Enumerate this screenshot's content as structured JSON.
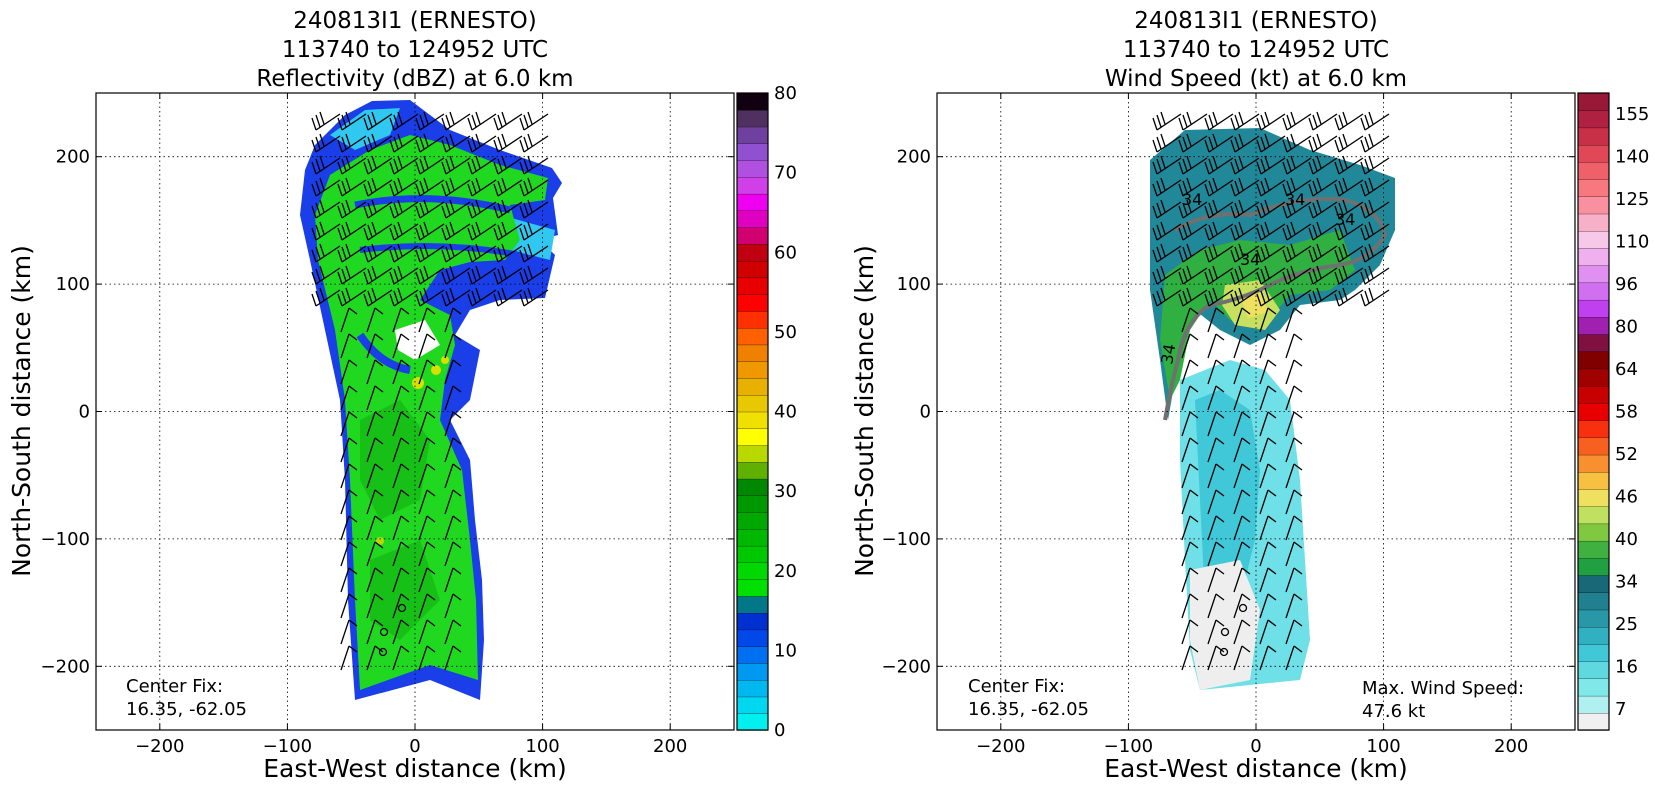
{
  "chart_data": [
    {
      "type": "heatmap",
      "title_lines": [
        "240813I1 (ERNESTO)",
        "113740 to 124952 UTC",
        "Reflectivity (dBZ) at 6.0 km"
      ],
      "xlabel": "East-West distance (km)",
      "ylabel": "North-South distance (km)",
      "xlim": [
        -250,
        250
      ],
      "ylim": [
        -250,
        250
      ],
      "xticks": [
        -200,
        -100,
        0,
        100,
        200
      ],
      "yticks": [
        -200,
        -100,
        0,
        100,
        200
      ],
      "grid": true,
      "annotation_lines": [
        "Center Fix:",
        "16.35, -62.05"
      ],
      "colorbar": {
        "min": 0,
        "max": 80,
        "tick_labels": [
          "0",
          "10",
          "20",
          "30",
          "40",
          "50",
          "60",
          "70",
          "80"
        ],
        "colors": [
          "#00f0f0",
          "#00d8f0",
          "#00b8f0",
          "#0098f0",
          "#0070f0",
          "#0048e8",
          "#0030d0",
          "#007888",
          "#00e000",
          "#00d800",
          "#00c800",
          "#00b800",
          "#00a800",
          "#009800",
          "#008800",
          "#60b000",
          "#b8d800",
          "#ffff00",
          "#f0e000",
          "#e8c800",
          "#e8b000",
          "#f09800",
          "#f08000",
          "#ff6000",
          "#ff3000",
          "#ff0000",
          "#e80000",
          "#d00000",
          "#c00010",
          "#d00070",
          "#e000c0",
          "#f000f0",
          "#d040e8",
          "#b050e0",
          "#9050d0",
          "#7040a0",
          "#503060",
          "#100010"
        ]
      }
    },
    {
      "type": "heatmap",
      "title_lines": [
        "240813I1 (ERNESTO)",
        "113740 to 124952 UTC",
        "Wind Speed (kt) at 6.0 km"
      ],
      "xlabel": "East-West distance (km)",
      "ylabel": "North-South distance (km)",
      "xlim": [
        -250,
        250
      ],
      "ylim": [
        -250,
        250
      ],
      "xticks": [
        -200,
        -100,
        0,
        100,
        200
      ],
      "yticks": [
        -200,
        -100,
        0,
        100,
        200
      ],
      "grid": true,
      "annotation_lines": [
        "Center Fix:",
        "16.35, -62.05"
      ],
      "max_wind_lines": [
        "Max. Wind Speed:",
        "47.6 kt"
      ],
      "contour_labels": [
        "34",
        "34",
        "34",
        "34",
        "34"
      ],
      "colorbar": {
        "tick_labels": [
          "7",
          "16",
          "25",
          "34",
          "40",
          "46",
          "52",
          "58",
          "64",
          "80",
          "96",
          "110",
          "125",
          "140",
          "155"
        ],
        "colors": [
          "#f0f0f0",
          "#b0f0f0",
          "#80e8e8",
          "#60d8e0",
          "#40c8d8",
          "#30b0c0",
          "#2898a8",
          "#208090",
          "#186878",
          "#20a040",
          "#40b040",
          "#80c840",
          "#c0e060",
          "#f0e060",
          "#f8c040",
          "#f89030",
          "#f86020",
          "#f83010",
          "#e80000",
          "#c80000",
          "#a00000",
          "#800000",
          "#801040",
          "#a020b0",
          "#c040f0",
          "#d070f0",
          "#e090f0",
          "#f0b0f0",
          "#f8c8e8",
          "#f8b0c8",
          "#f890a0",
          "#f87880",
          "#f06068",
          "#e04858",
          "#c83048",
          "#b02040",
          "#981838"
        ]
      }
    }
  ]
}
